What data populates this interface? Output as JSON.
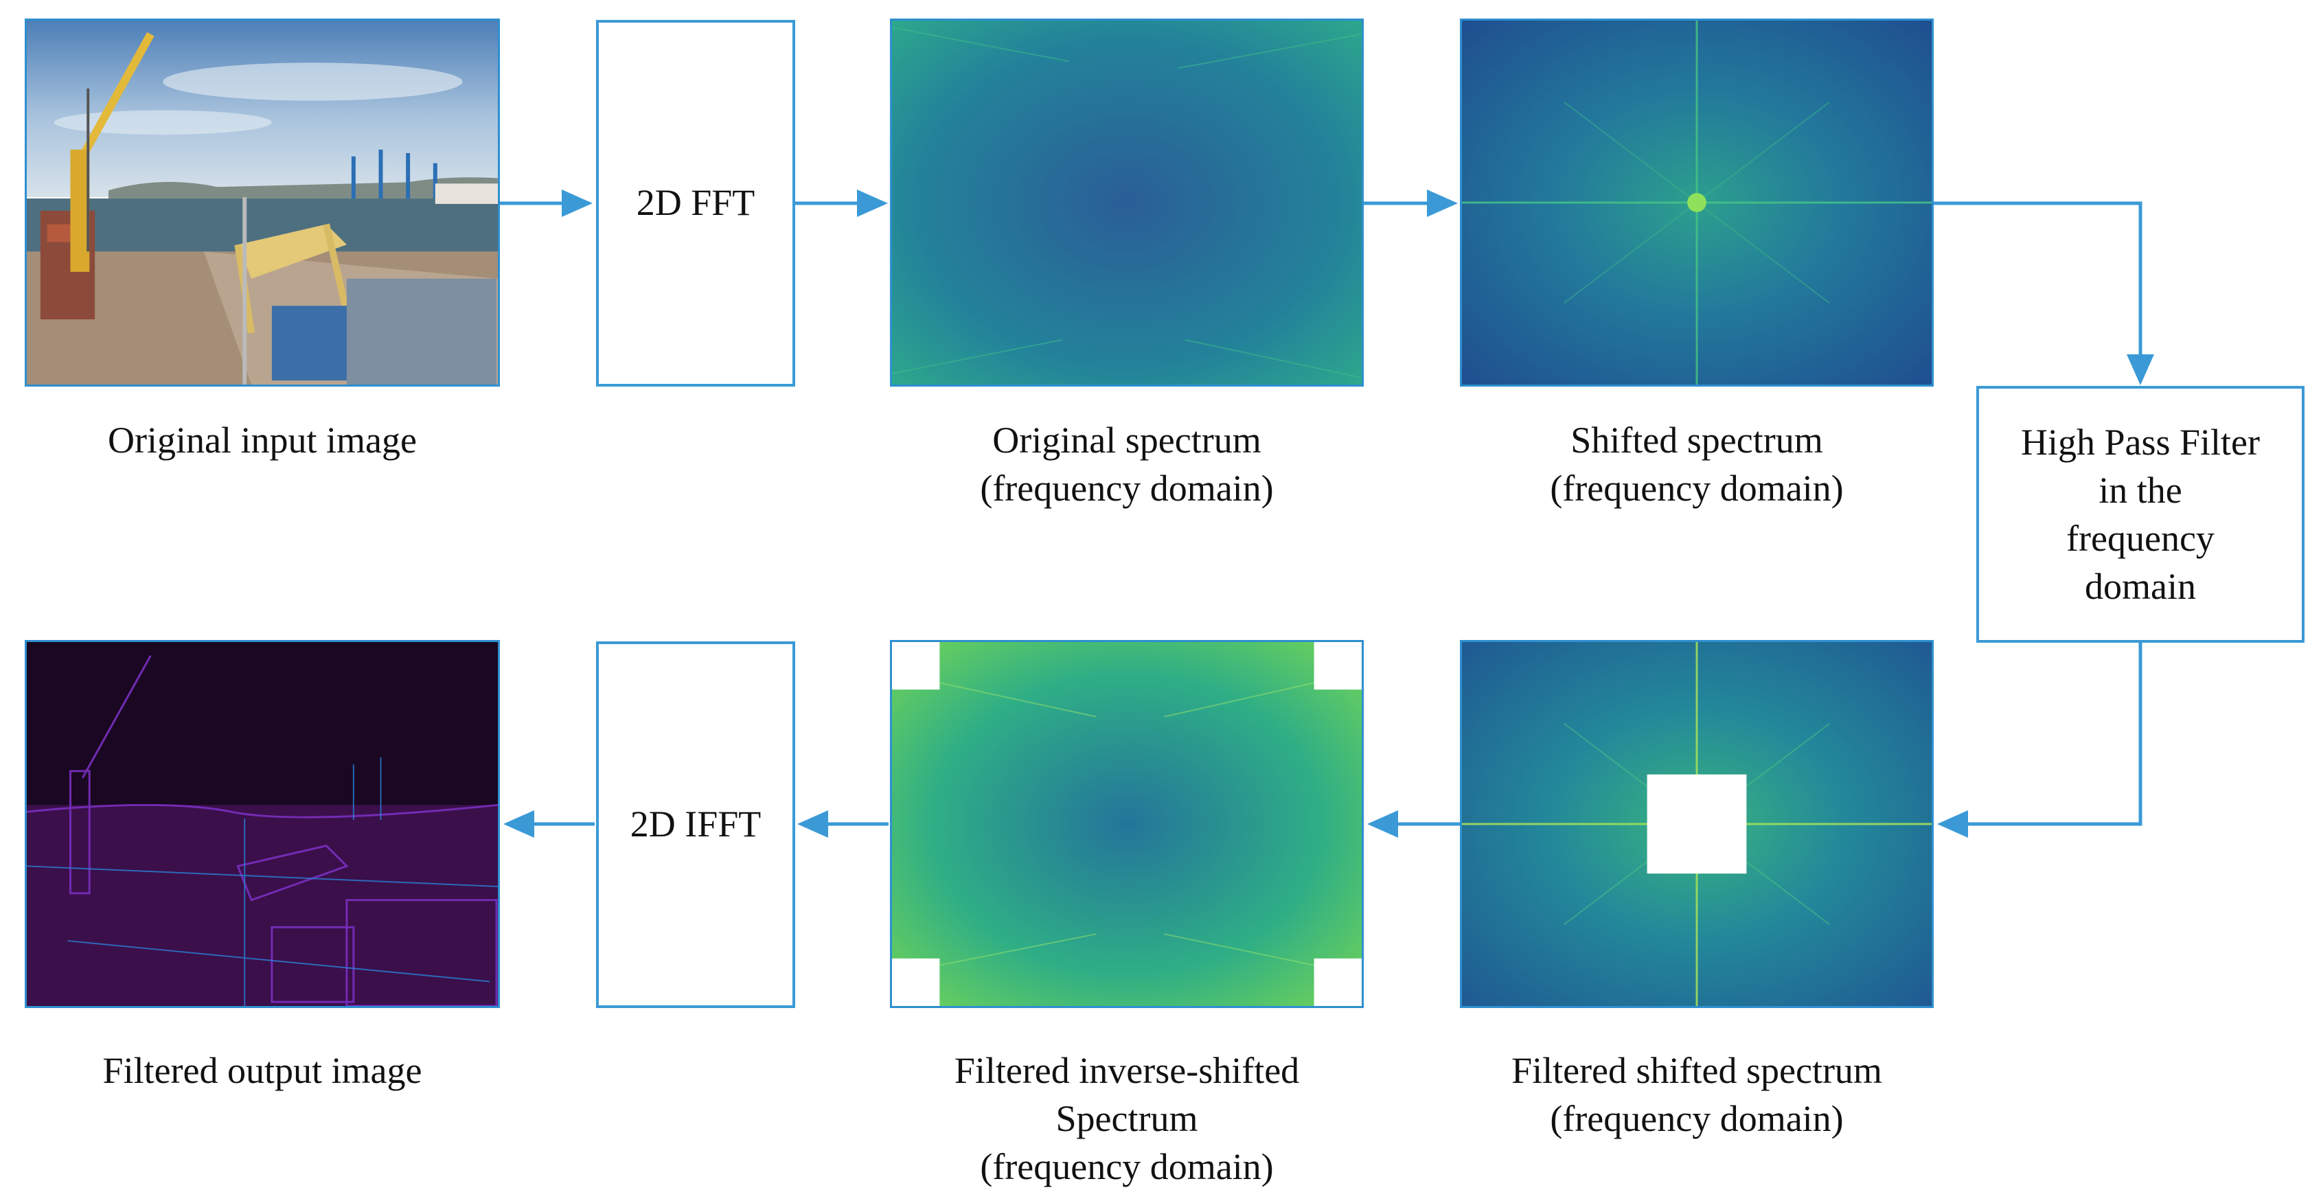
{
  "colors": {
    "arrow": "#3b9ad6",
    "box_border": "#3b9ad6"
  },
  "top_row": {
    "input_caption": "Original input image",
    "fft_label": "2D FFT",
    "original_spectrum_caption": [
      "Original spectrum",
      "(frequency domain)"
    ],
    "shifted_spectrum_caption": [
      "Shifted spectrum",
      "(frequency domain)"
    ]
  },
  "filter_box": {
    "lines": [
      "High Pass Filter",
      "in the",
      "frequency",
      "domain"
    ]
  },
  "bottom_row": {
    "output_caption": "Filtered output image",
    "ifft_label": "2D IFFT",
    "inverse_shifted_caption": [
      "Filtered inverse-shifted",
      "Spectrum",
      "(frequency domain)"
    ],
    "filtered_shifted_caption": [
      "Filtered shifted spectrum",
      "(frequency domain)"
    ]
  }
}
